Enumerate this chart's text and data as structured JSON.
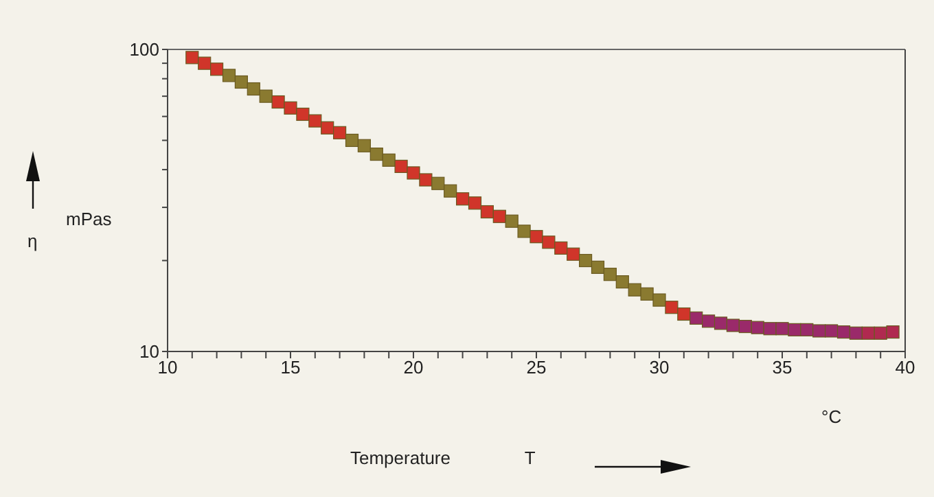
{
  "chart_data": {
    "type": "scatter",
    "xlabel": "Temperature T",
    "annotations": [
      "°C",
      "mPas",
      "η"
    ],
    "log": "y",
    "legend": false,
    "marker": "square",
    "xlim": [
      10,
      40
    ],
    "xticks": [
      10,
      {
        "value": 11,
        "label": null
      },
      {
        "value": 12,
        "label": null
      },
      {
        "value": 13,
        "label": null
      },
      {
        "value": 14,
        "label": null
      },
      15,
      {
        "value": 16,
        "label": null
      },
      {
        "value": 17,
        "label": null
      },
      {
        "value": 18,
        "label": null
      },
      {
        "value": 19,
        "label": null
      },
      20,
      {
        "value": 21,
        "label": null
      },
      {
        "value": 22,
        "label": null
      },
      {
        "value": 23,
        "label": null
      },
      {
        "value": 24,
        "label": null
      },
      25,
      {
        "value": 26,
        "label": null
      },
      {
        "value": 27,
        "label": null
      },
      {
        "value": 28,
        "label": null
      },
      {
        "value": 29,
        "label": null
      },
      30,
      {
        "value": 31,
        "label": null
      },
      {
        "value": 32,
        "label": null
      },
      {
        "value": 33,
        "label": null
      },
      {
        "value": 34,
        "label": null
      },
      35,
      {
        "value": 36,
        "label": null
      },
      {
        "value": 37,
        "label": null
      },
      {
        "value": 38,
        "label": null
      },
      {
        "value": 39,
        "label": null
      },
      40
    ],
    "ylim": [
      10,
      100
    ],
    "yticks": [
      10,
      {
        "value": 20,
        "label": null
      },
      {
        "value": 30,
        "label": null
      },
      {
        "value": 40,
        "label": null
      },
      {
        "value": 50,
        "label": null
      },
      {
        "value": 60,
        "label": null
      },
      {
        "value": 70,
        "label": null
      },
      {
        "value": 80,
        "label": null
      },
      {
        "value": 90,
        "label": null
      },
      100
    ],
    "x": [
      11,
      11.5,
      12,
      12.5,
      13,
      13.5,
      14,
      14.5,
      15,
      15.5,
      16,
      16.5,
      17,
      17.5,
      18,
      18.5,
      19,
      19.5,
      20,
      20.5,
      21,
      21.5,
      22,
      22.5,
      23,
      23.5,
      24,
      24.5,
      25,
      25.5,
      26,
      26.5,
      27,
      27.5,
      28,
      28.5,
      29,
      29.5,
      30,
      30.5,
      31,
      31.5,
      32,
      32.5,
      33,
      33.5,
      34,
      34.5,
      35,
      35.5,
      36,
      36.5,
      37,
      37.5,
      38,
      38.5,
      39,
      39.5
    ],
    "values": [
      94,
      90,
      86,
      82,
      78,
      74,
      70,
      67,
      64,
      61,
      58,
      55,
      53,
      50,
      48,
      45,
      43,
      41,
      39,
      37,
      36,
      34,
      32,
      31,
      29,
      28,
      27,
      25,
      24,
      23,
      22,
      21,
      20,
      19,
      18,
      17,
      16,
      15.5,
      14.8,
      14,
      13.3,
      12.9,
      12.6,
      12.4,
      12.2,
      12.1,
      12,
      11.9,
      11.9,
      11.8,
      11.8,
      11.7,
      11.7,
      11.6,
      11.5,
      11.5,
      11.5,
      11.6
    ],
    "colors": [
      "#d0352a",
      "#d0352a",
      "#d0352a",
      "#8a7a30",
      "#8a7a30",
      "#8a7a30",
      "#8a7a30",
      "#d0352a",
      "#d0352a",
      "#d0352a",
      "#d0352a",
      "#d0352a",
      "#d0352a",
      "#8a7a30",
      "#8a7a30",
      "#8a7a30",
      "#8a7a30",
      "#d0352a",
      "#d0352a",
      "#d0352a",
      "#8a7a30",
      "#8a7a30",
      "#d0352a",
      "#d0352a",
      "#d0352a",
      "#d0352a",
      "#8a7a30",
      "#8a7a30",
      "#d0352a",
      "#d0352a",
      "#d0352a",
      "#d0352a",
      "#8a7a30",
      "#8a7a30",
      "#8a7a30",
      "#8a7a30",
      "#8a7a30",
      "#8a7a30",
      "#8a7a30",
      "#d0352a",
      "#d0352a",
      "#9a2a6a",
      "#9a2a6a",
      "#9a2a6a",
      "#9a2a6a",
      "#9a2a6a",
      "#9a2a6a",
      "#9a2a6a",
      "#9a2a6a",
      "#9a2a6a",
      "#9a2a6a",
      "#9a2a6a",
      "#9a2a6a",
      "#9a2a6a",
      "#9a2a6a",
      "#b02a50",
      "#b02a50",
      "#b02a50"
    ]
  }
}
